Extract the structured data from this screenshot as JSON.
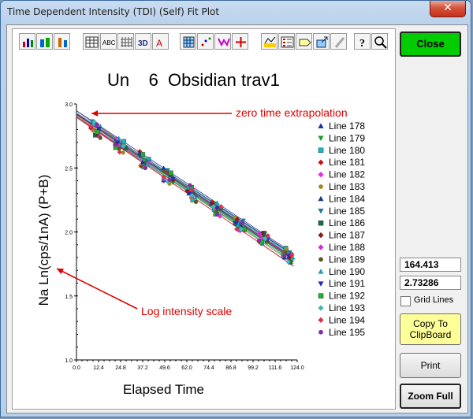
{
  "window": {
    "title": "Time Dependent Intensity (TDI) (Self) Fit Plot"
  },
  "toolbar": {
    "buttons": [
      {
        "name": "bar-chart-icon"
      },
      {
        "name": "3d-bar-chart-icon"
      },
      {
        "name": "stacked-bar-icon"
      },
      {
        "name": "data-grid-icon"
      },
      {
        "name": "abc-text-icon"
      },
      {
        "name": "grid-lines-icon"
      },
      {
        "name": "3d-toggle-icon"
      },
      {
        "name": "rotate-text-icon"
      },
      {
        "name": "pattern-icon"
      },
      {
        "name": "scatter-icon"
      },
      {
        "name": "markers-icon"
      },
      {
        "name": "crosshair-icon"
      },
      {
        "name": "palette-icon"
      },
      {
        "name": "legend-icon"
      },
      {
        "name": "tag-icon"
      },
      {
        "name": "export-icon"
      },
      {
        "name": "pencil-icon"
      },
      {
        "name": "help-icon"
      },
      {
        "name": "zoom-icon"
      }
    ]
  },
  "chart_data": {
    "type": "scatter",
    "title": "Un    6  Obsidian trav1",
    "xlabel": "Elapsed Time",
    "ylabel": "Na Ln(cps/1nA) (P+B)",
    "xlim": [
      0,
      124
    ],
    "ylim": [
      1.0,
      3.0
    ],
    "x_ticks": [
      "0.0",
      "12.4",
      "24.8",
      "37.2",
      "49.6",
      "62.0",
      "74.4",
      "86.8",
      "99.2",
      "111.6",
      "124.0"
    ],
    "y_ticks": [
      "1.0",
      "1.5",
      "2.0",
      "2.5",
      "3.0"
    ],
    "legend_position": "right",
    "grid": false,
    "fit": {
      "intercept": 2.9,
      "slope_per_unit": -0.00915
    },
    "series": [
      {
        "name": "Line 178",
        "marker": "triangle-up",
        "color": "#1a2aa8"
      },
      {
        "name": "Line 179",
        "marker": "triangle-down",
        "color": "#1a9a2a"
      },
      {
        "name": "Line 180",
        "marker": "square",
        "color": "#20b0c0"
      },
      {
        "name": "Line 181",
        "marker": "diamond",
        "color": "#c01818"
      },
      {
        "name": "Line 182",
        "marker": "diamond",
        "color": "#e030e0"
      },
      {
        "name": "Line 183",
        "marker": "circle",
        "color": "#a08a20"
      },
      {
        "name": "Line 184",
        "marker": "triangle-up",
        "color": "#1a3a88"
      },
      {
        "name": "Line 185",
        "marker": "triangle-down",
        "color": "#1a7a9a"
      },
      {
        "name": "Line 186",
        "marker": "square",
        "color": "#1a6a4a"
      },
      {
        "name": "Line 187",
        "marker": "diamond",
        "color": "#8a1a1a"
      },
      {
        "name": "Line 188",
        "marker": "diamond",
        "color": "#d030d0"
      },
      {
        "name": "Line 189",
        "marker": "circle",
        "color": "#5a5a1a"
      },
      {
        "name": "Line 190",
        "marker": "triangle-up",
        "color": "#20a0a8"
      },
      {
        "name": "Line 191",
        "marker": "triangle-down",
        "color": "#2a2ab8"
      },
      {
        "name": "Line 192",
        "marker": "square",
        "color": "#20b030"
      },
      {
        "name": "Line 193",
        "marker": "diamond",
        "color": "#40b8b8"
      },
      {
        "name": "Line 194",
        "marker": "diamond",
        "color": "#e03050"
      },
      {
        "name": "Line 195",
        "marker": "circle",
        "color": "#8030a0"
      }
    ],
    "annotations": [
      {
        "text": "zero time extrapolation",
        "points_to": [
          0,
          2.9
        ]
      },
      {
        "text": "Log intensity scale",
        "points_to": "y-axis"
      }
    ]
  },
  "side_panel": {
    "close_label": "Close",
    "value_1": "164.413",
    "value_2": "2.73286",
    "grid_lines_label": "Grid Lines",
    "copy_label_1": "Copy To",
    "copy_label_2": "ClipBoard",
    "print_label": "Print",
    "zoom_label": "Zoom Full"
  },
  "colors": {
    "close_button": "#00cc00",
    "copy_button": "#ffff99",
    "annotation": "#e00000"
  }
}
